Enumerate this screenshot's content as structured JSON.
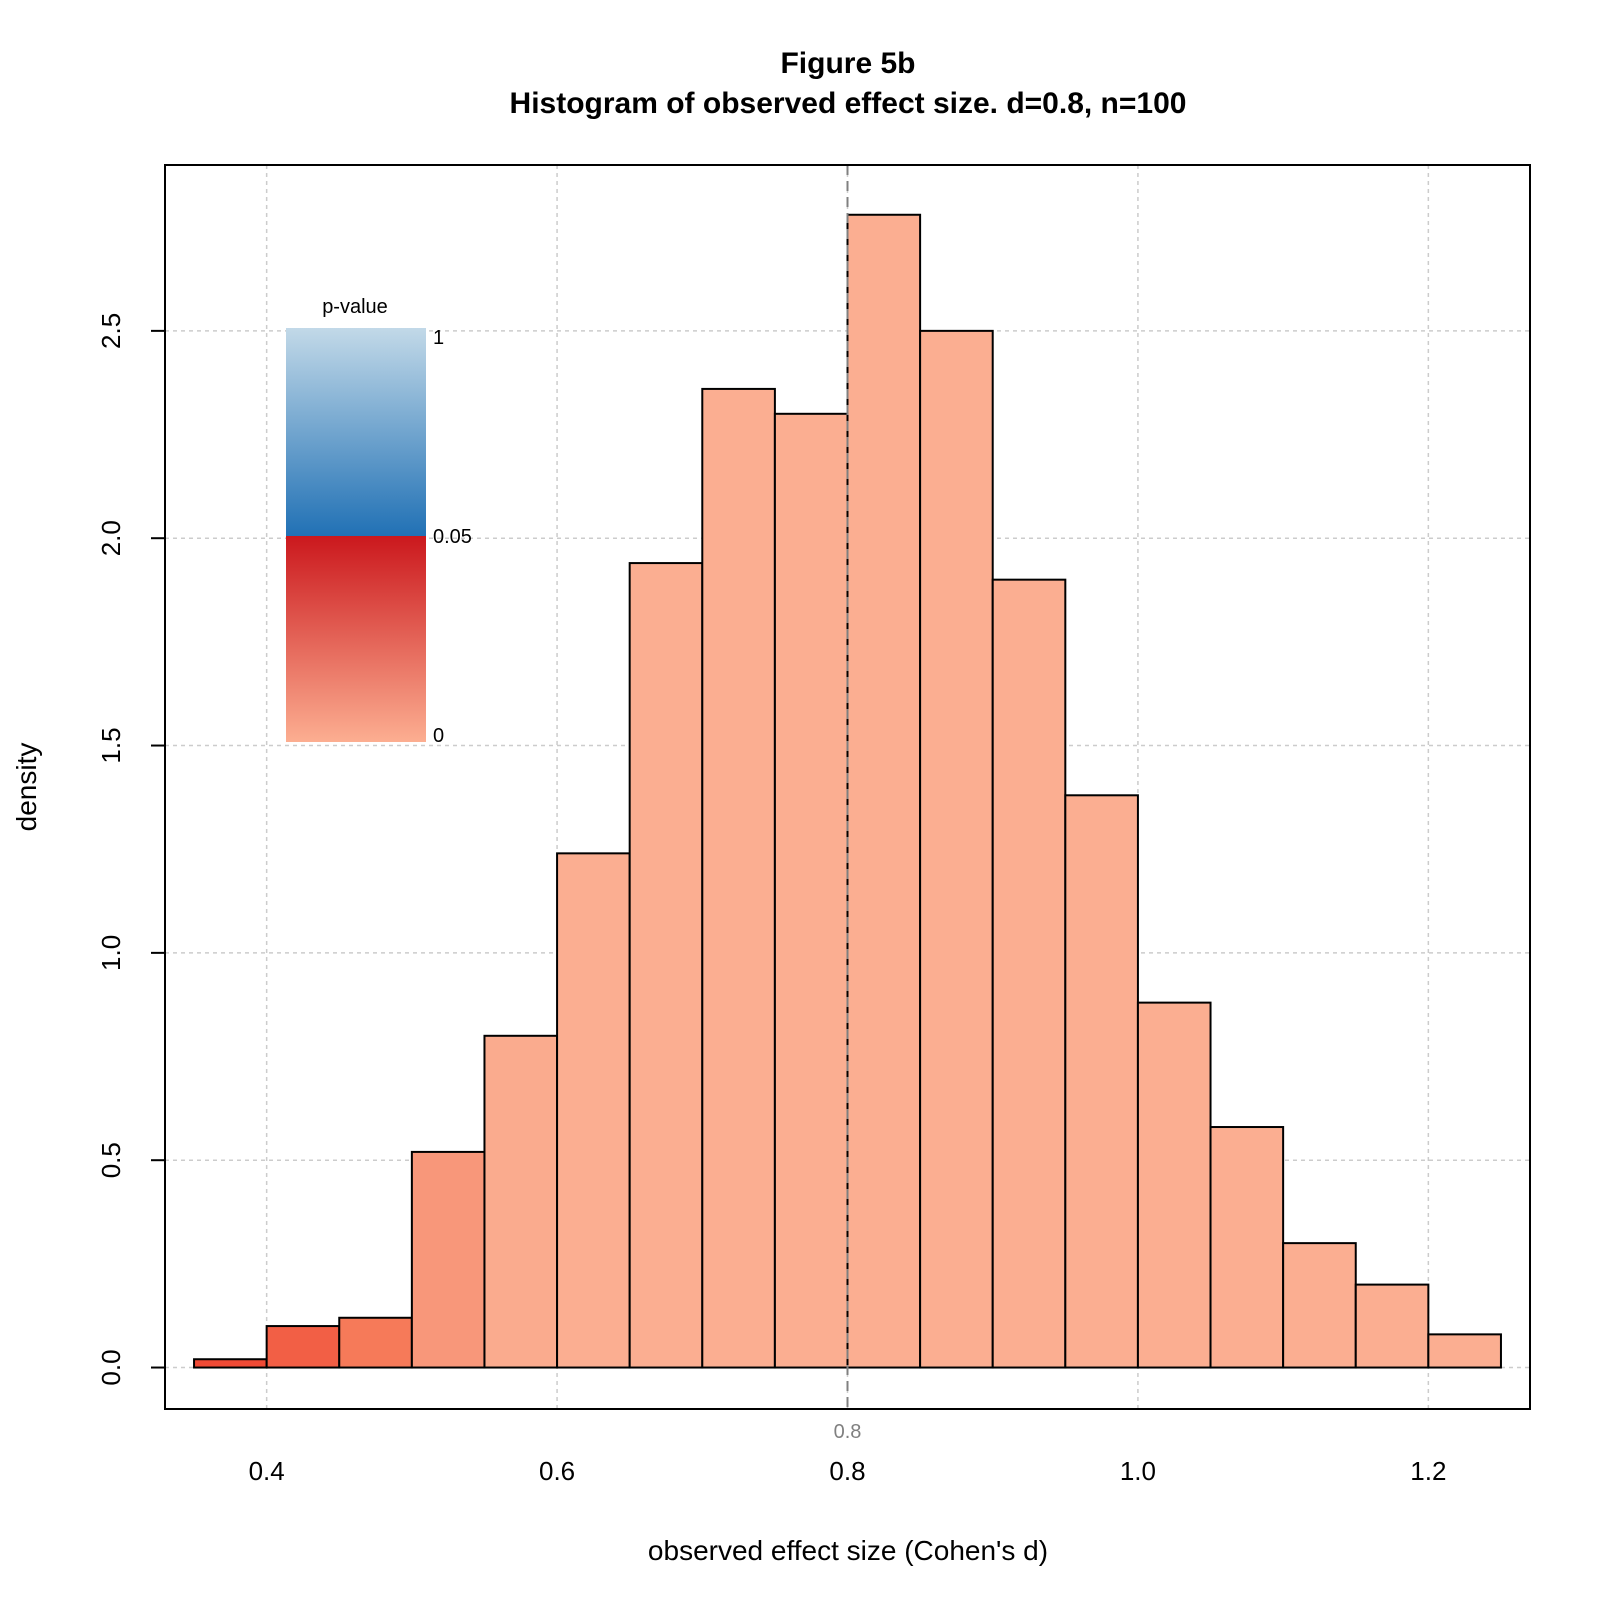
{
  "chart_data": {
    "type": "bar",
    "title": "Figure 5b",
    "subtitle": "Histogram of observed effect size. d=0.8, n=100",
    "xlabel": "observed effect size (Cohen's d)",
    "ylabel": "density",
    "xlim": [
      0.33,
      1.27
    ],
    "ylim": [
      -0.1,
      2.9
    ],
    "x_ticks": [
      0.4,
      0.6,
      0.8,
      1.0,
      1.2
    ],
    "x_tick_labels": [
      "0.4",
      "0.6",
      "0.8",
      "1.0",
      "1.2"
    ],
    "y_ticks": [
      0.0,
      0.5,
      1.0,
      1.5,
      2.0,
      2.5
    ],
    "y_tick_labels": [
      "0.0",
      "0.5",
      "1.0",
      "1.5",
      "2.0",
      "2.5"
    ],
    "grid": true,
    "bins": [
      {
        "x0": 0.35,
        "x1": 0.4,
        "density": 0.02,
        "color": "#ef4a35"
      },
      {
        "x0": 0.4,
        "x1": 0.45,
        "density": 0.1,
        "color": "#f25f45"
      },
      {
        "x0": 0.45,
        "x1": 0.5,
        "density": 0.12,
        "color": "#f67a59"
      },
      {
        "x0": 0.5,
        "x1": 0.55,
        "density": 0.52,
        "color": "#f8977a"
      },
      {
        "x0": 0.55,
        "x1": 0.6,
        "density": 0.8,
        "color": "#faab8e"
      },
      {
        "x0": 0.6,
        "x1": 0.65,
        "density": 1.24,
        "color": "#fbae91"
      },
      {
        "x0": 0.65,
        "x1": 0.7,
        "density": 1.94,
        "color": "#fbae91"
      },
      {
        "x0": 0.7,
        "x1": 0.75,
        "density": 2.36,
        "color": "#fbae91"
      },
      {
        "x0": 0.75,
        "x1": 0.8,
        "density": 2.3,
        "color": "#fbae91"
      },
      {
        "x0": 0.8,
        "x1": 0.85,
        "density": 2.78,
        "color": "#fbae91"
      },
      {
        "x0": 0.85,
        "x1": 0.9,
        "density": 2.5,
        "color": "#fbae91"
      },
      {
        "x0": 0.9,
        "x1": 0.95,
        "density": 1.9,
        "color": "#fbae91"
      },
      {
        "x0": 0.95,
        "x1": 1.0,
        "density": 1.38,
        "color": "#fbae91"
      },
      {
        "x0": 1.0,
        "x1": 1.05,
        "density": 0.88,
        "color": "#fbae91"
      },
      {
        "x0": 1.05,
        "x1": 1.1,
        "density": 0.58,
        "color": "#fbae91"
      },
      {
        "x0": 1.1,
        "x1": 1.15,
        "density": 0.3,
        "color": "#fbae91"
      },
      {
        "x0": 1.15,
        "x1": 1.2,
        "density": 0.2,
        "color": "#fbae91"
      },
      {
        "x0": 1.2,
        "x1": 1.25,
        "density": 0.08,
        "color": "#fbae91"
      }
    ],
    "reference_line": {
      "x": 0.8,
      "label": "0.8",
      "color": "#808080"
    },
    "legend": {
      "title": "p-value",
      "placement": "top-left",
      "labels": [
        "1",
        "0.05",
        "0"
      ],
      "gradient_upper": [
        "#c2d9e8",
        "#2171b5"
      ],
      "gradient_lower": [
        "#cb181d",
        "#fcae91"
      ]
    }
  }
}
